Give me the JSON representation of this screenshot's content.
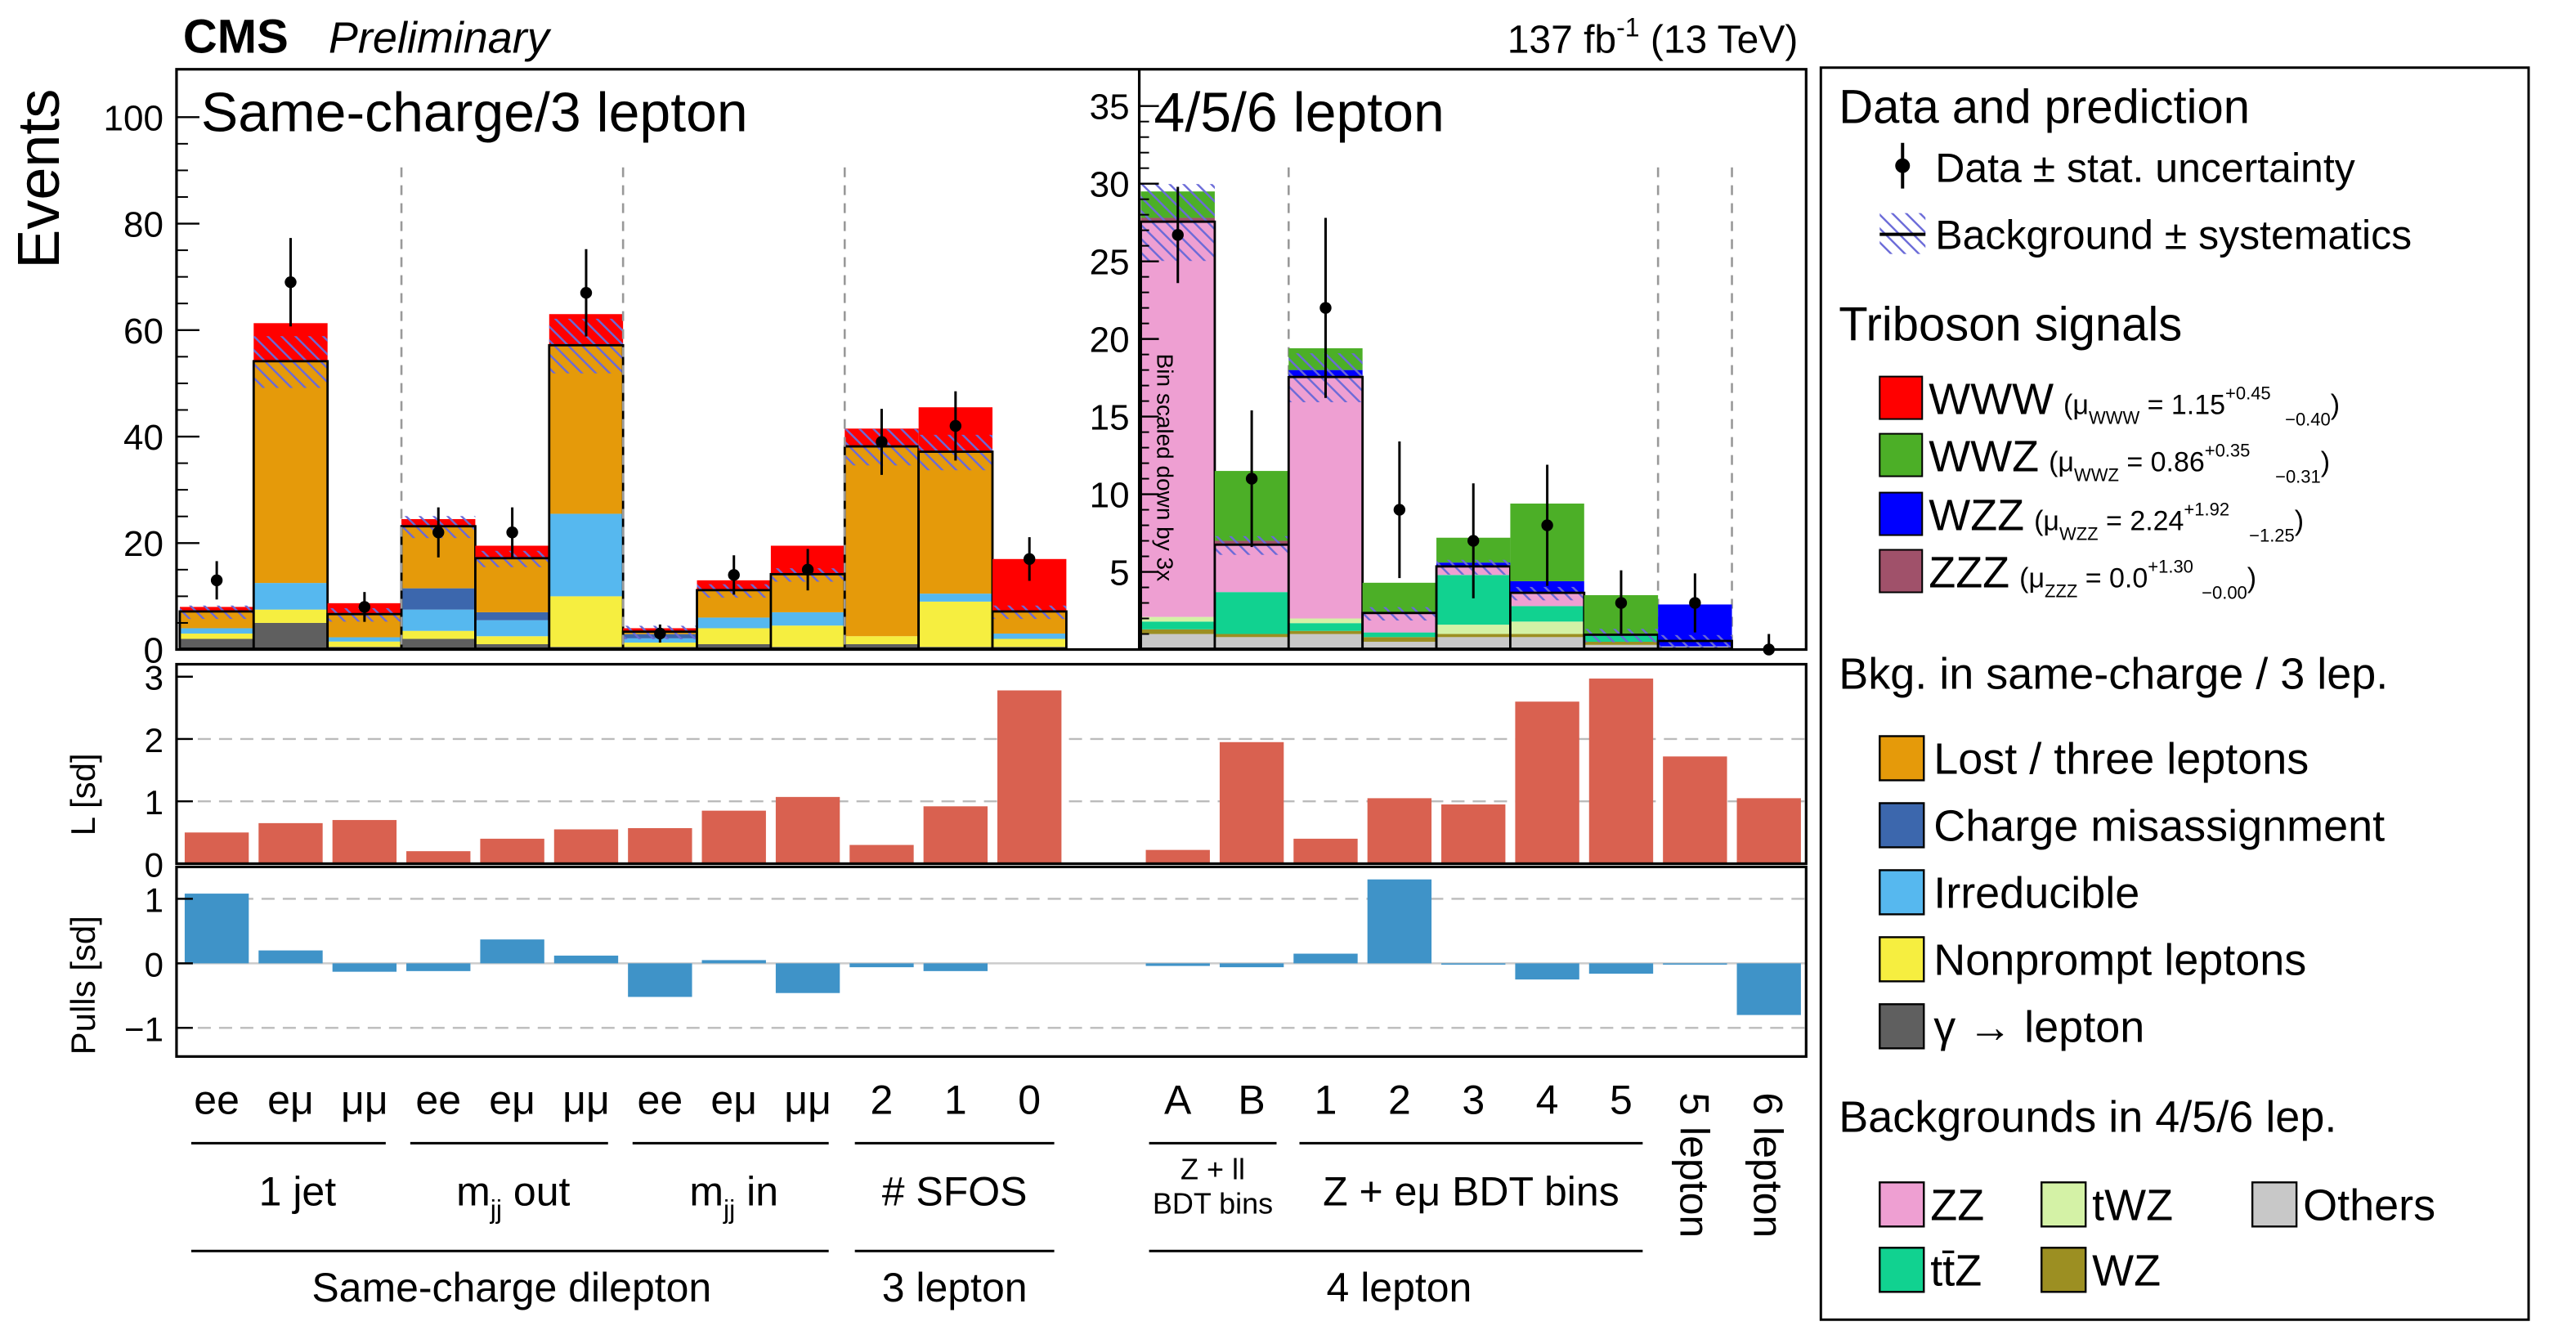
{
  "header": {
    "cms": "CMS",
    "preliminary": "Preliminary",
    "lumi": "137 fb",
    "lumi_sup": "-1",
    "energy": " (13 TeV)"
  },
  "colors": {
    "WWW": "#ff0000",
    "WWZ": "#4caf27",
    "WZZ": "#0000ff",
    "ZZZ": "#a0516a",
    "lost": "#e59a0a",
    "chargeflip": "#3c67ad",
    "irreducible": "#56b8ef",
    "nonprompt": "#f6ee40",
    "photon": "#5f5f5f",
    "ZZ": "#ee9fd2",
    "tWZ": "#d4f2a6",
    "Others": "#c8c8c8",
    "ttZ": "#11d290",
    "WZ": "#9c8f22",
    "pull_L": "#d96150",
    "pull_S": "#3f93c8"
  },
  "chart_data": [
    {
      "type": "bar",
      "name": "main",
      "title": "Same-charge/3 lepton",
      "ylabel": "Events",
      "ylim": [
        0,
        108
      ],
      "yticks": [
        "0",
        "20",
        "40",
        "60",
        "80",
        "100"
      ],
      "categories": [
        "ee",
        "eμ",
        "μμ",
        "ee",
        "eμ",
        "μμ",
        "ee",
        "eμ",
        "μμ",
        "2",
        "1",
        "0"
      ],
      "data": [
        13,
        69,
        8,
        22,
        22,
        67,
        3,
        14,
        15,
        39,
        42,
        17
      ],
      "data_err": [
        3.6,
        8.3,
        2.8,
        4.7,
        4.7,
        8.2,
        1.7,
        3.7,
        3.9,
        6.2,
        6.5,
        4.1
      ],
      "background_total": [
        7,
        54,
        6.5,
        23,
        17,
        57,
        3.2,
        11,
        14,
        38,
        37,
        7
      ],
      "stacks": [
        [
          {
            "name": "photon",
            "value": 2
          },
          {
            "name": "nonprompt",
            "value": 1
          },
          {
            "name": "irreducible",
            "value": 1
          },
          {
            "name": "lost",
            "value": 3
          },
          {
            "name": "WWW",
            "value": 1
          }
        ],
        [
          {
            "name": "photon",
            "value": 5
          },
          {
            "name": "nonprompt",
            "value": 2.5
          },
          {
            "name": "irreducible",
            "value": 5
          },
          {
            "name": "lost",
            "value": 41.5
          },
          {
            "name": "WWW",
            "value": 7.3
          }
        ],
        [
          {
            "name": "photon",
            "value": 0.5
          },
          {
            "name": "nonprompt",
            "value": 1
          },
          {
            "name": "irreducible",
            "value": 0.8
          },
          {
            "name": "lost",
            "value": 4.2
          },
          {
            "name": "WWW",
            "value": 2.2
          }
        ],
        [
          {
            "name": "photon",
            "value": 2
          },
          {
            "name": "nonprompt",
            "value": 1.5
          },
          {
            "name": "irreducible",
            "value": 4
          },
          {
            "name": "chargeflip",
            "value": 4
          },
          {
            "name": "lost",
            "value": 11.5
          },
          {
            "name": "WWW",
            "value": 1.5
          }
        ],
        [
          {
            "name": "photon",
            "value": 1
          },
          {
            "name": "nonprompt",
            "value": 1.5
          },
          {
            "name": "irreducible",
            "value": 3
          },
          {
            "name": "chargeflip",
            "value": 1.5
          },
          {
            "name": "lost",
            "value": 10
          },
          {
            "name": "WWW",
            "value": 2.5
          }
        ],
        [
          {
            "name": "photon",
            "value": 0.5
          },
          {
            "name": "nonprompt",
            "value": 9.5
          },
          {
            "name": "irreducible",
            "value": 15.5
          },
          {
            "name": "lost",
            "value": 31.5
          },
          {
            "name": "WWW",
            "value": 6
          }
        ],
        [
          {
            "name": "photon",
            "value": 0.5
          },
          {
            "name": "nonprompt",
            "value": 0.8
          },
          {
            "name": "irreducible",
            "value": 0.8
          },
          {
            "name": "chargeflip",
            "value": 0.8
          },
          {
            "name": "lost",
            "value": 0.3
          },
          {
            "name": "WWW",
            "value": 0.8
          }
        ],
        [
          {
            "name": "photon",
            "value": 1
          },
          {
            "name": "nonprompt",
            "value": 3
          },
          {
            "name": "irreducible",
            "value": 2
          },
          {
            "name": "lost",
            "value": 5
          },
          {
            "name": "WWW",
            "value": 2
          }
        ],
        [
          {
            "name": "photon",
            "value": 0.5
          },
          {
            "name": "nonprompt",
            "value": 4
          },
          {
            "name": "irreducible",
            "value": 2.5
          },
          {
            "name": "lost",
            "value": 7
          },
          {
            "name": "WWW",
            "value": 5.5
          }
        ],
        [
          {
            "name": "photon",
            "value": 1
          },
          {
            "name": "nonprompt",
            "value": 1.5
          },
          {
            "name": "lost",
            "value": 35.5
          },
          {
            "name": "WWW",
            "value": 3.5
          }
        ],
        [
          {
            "name": "photon",
            "value": 0.5
          },
          {
            "name": "nonprompt",
            "value": 8.5
          },
          {
            "name": "irreducible",
            "value": 1.5
          },
          {
            "name": "lost",
            "value": 26.5
          },
          {
            "name": "WWW",
            "value": 8.5
          }
        ],
        [
          {
            "name": "photon",
            "value": 0.5
          },
          {
            "name": "nonprompt",
            "value": 1.5
          },
          {
            "name": "irreducible",
            "value": 1
          },
          {
            "name": "lost",
            "value": 4
          },
          {
            "name": "WWW",
            "value": 10
          }
        ]
      ]
    },
    {
      "type": "bar",
      "name": "main-right",
      "title": "4/5/6 lepton",
      "ylim": [
        0,
        37
      ],
      "yticks": [
        "5",
        "10",
        "15",
        "20",
        "25",
        "30",
        "35"
      ],
      "categories": [
        "A",
        "B",
        "1",
        "2",
        "3",
        "4",
        "5",
        "5 lepton",
        "6 lepton"
      ],
      "data": [
        26.7,
        11,
        22,
        9,
        7,
        8,
        3,
        3,
        0
      ],
      "data_err": [
        3.1,
        4.4,
        5.8,
        4.4,
        3.7,
        3.9,
        2.1,
        1.9,
        1.0
      ],
      "background_total": [
        27.5,
        6.7,
        17.5,
        2.3,
        5.3,
        3.6,
        0.9,
        0.5,
        0
      ],
      "annotation": "Bin scaled down by 3x",
      "stacks": [
        [
          {
            "name": "Others",
            "value": 1
          },
          {
            "name": "WZ",
            "value": 0.3
          },
          {
            "name": "ttZ",
            "value": 0.5
          },
          {
            "name": "tWZ",
            "value": 0.3
          },
          {
            "name": "ZZ",
            "value": 25.4
          },
          {
            "name": "ZZZ",
            "value": 0.3
          },
          {
            "name": "WWZ",
            "value": 1.7
          }
        ],
        [
          {
            "name": "Others",
            "value": 0.8
          },
          {
            "name": "WZ",
            "value": 0.2
          },
          {
            "name": "ttZ",
            "value": 2.7
          },
          {
            "name": "ZZ",
            "value": 3
          },
          {
            "name": "ZZZ",
            "value": 0.3
          },
          {
            "name": "WWZ",
            "value": 4.5
          }
        ],
        [
          {
            "name": "Others",
            "value": 1
          },
          {
            "name": "WZ",
            "value": 0.2
          },
          {
            "name": "ttZ",
            "value": 0.5
          },
          {
            "name": "tWZ",
            "value": 0.3
          },
          {
            "name": "ZZ",
            "value": 15.5
          },
          {
            "name": "WZZ",
            "value": 0.5
          },
          {
            "name": "WWZ",
            "value": 1.4
          }
        ],
        [
          {
            "name": "Others",
            "value": 0.5
          },
          {
            "name": "WZ",
            "value": 0.3
          },
          {
            "name": "ttZ",
            "value": 0.3
          },
          {
            "name": "ZZ",
            "value": 1.2
          },
          {
            "name": "WWZ",
            "value": 2
          }
        ],
        [
          {
            "name": "Others",
            "value": 0.8
          },
          {
            "name": "WZ",
            "value": 0.2
          },
          {
            "name": "tWZ",
            "value": 0.6
          },
          {
            "name": "ttZ",
            "value": 3.2
          },
          {
            "name": "ZZ",
            "value": 0.5
          },
          {
            "name": "WZZ",
            "value": 0.3
          },
          {
            "name": "WWZ",
            "value": 1.6
          }
        ],
        [
          {
            "name": "Others",
            "value": 0.8
          },
          {
            "name": "WZ",
            "value": 0.2
          },
          {
            "name": "tWZ",
            "value": 0.8
          },
          {
            "name": "ttZ",
            "value": 1
          },
          {
            "name": "ZZ",
            "value": 0.8
          },
          {
            "name": "WZZ",
            "value": 0.8
          },
          {
            "name": "WWZ",
            "value": 5
          }
        ],
        [
          {
            "name": "Others",
            "value": 0.3
          },
          {
            "name": "WZ",
            "value": 0.2
          },
          {
            "name": "ttZ",
            "value": 0.4
          },
          {
            "name": "WWZ",
            "value": 2.6
          }
        ],
        [
          {
            "name": "Others",
            "value": 0.2
          },
          {
            "name": "WZZ",
            "value": 2.7
          }
        ],
        []
      ]
    },
    {
      "type": "bar",
      "name": "pulls-L",
      "ylabel": "L [sd]",
      "ylim": [
        0,
        3.2
      ],
      "yticks": [
        "0",
        "1",
        "2",
        "3"
      ],
      "values": [
        0.5,
        0.65,
        0.7,
        0.2,
        0.4,
        0.55,
        0.57,
        0.85,
        1.07,
        0.3,
        0.92,
        2.78,
        0.22,
        1.95,
        0.4,
        1.05,
        0.95,
        2.6,
        2.97,
        1.72,
        1.05
      ]
    },
    {
      "type": "bar",
      "name": "pulls-S",
      "ylabel": "Pulls [sd]",
      "ylim": [
        -1.3,
        1.4
      ],
      "yticks": [
        "−1",
        "0",
        "1"
      ],
      "values": [
        1.08,
        0.2,
        -0.13,
        -0.12,
        0.37,
        0.12,
        -0.52,
        0.05,
        -0.46,
        -0.06,
        -0.12,
        0,
        -0.04,
        -0.06,
        0.15,
        1.3,
        -0.02,
        -0.25,
        -0.16,
        -0.02,
        -0.8
      ]
    }
  ],
  "xaxis": {
    "group1": [
      "1 jet",
      "m",
      "jj",
      " out",
      "m",
      "jj",
      " in",
      "# SFOS"
    ],
    "group2_main": "Same-charge dilepton",
    "group2_3lep": "3 lepton",
    "right_group1": [
      "Z + ll",
      "BDT bins",
      "Z + eμ BDT bins"
    ],
    "right_group2": "4 lepton"
  },
  "legend": {
    "sec1_title": "Data and prediction",
    "data_label": "Data ± stat. uncertainty",
    "bkg_label": "Background ± systematics",
    "sec2_title": "Triboson signals",
    "www": {
      "name": "WWW",
      "mu": "(μ",
      "sub": "WWW",
      "val": " = 1.15",
      "up": "+0.45",
      "dn": "−0.40",
      "close": ")"
    },
    "wwz": {
      "name": "WWZ",
      "mu": "(μ",
      "sub": "WWZ",
      "val": " = 0.86",
      "up": "+0.35",
      "dn": "−0.31",
      "close": ")"
    },
    "wzz": {
      "name": "WZZ",
      "mu": "(μ",
      "sub": "WZZ",
      "val": " = 2.24",
      "up": "+1.92",
      "dn": "−1.25",
      "close": ")"
    },
    "zzz": {
      "name": "ZZZ",
      "mu": "(μ",
      "sub": "ZZZ",
      "val": " = 0.0",
      "up": "+1.30",
      "dn": "−0.00",
      "close": ")"
    },
    "sec3_title": "Bkg. in same-charge / 3 lep.",
    "lost": "Lost / three leptons",
    "chargeflip": "Charge misassignment",
    "irreducible": "Irreducible",
    "nonprompt": "Nonprompt leptons",
    "photon": "γ → lepton",
    "sec4_title": "Backgrounds in 4/5/6 lep.",
    "zz": "ZZ",
    "twz": "tWZ",
    "others": "Others",
    "ttz": "tt̄Z",
    "wz": "WZ"
  }
}
